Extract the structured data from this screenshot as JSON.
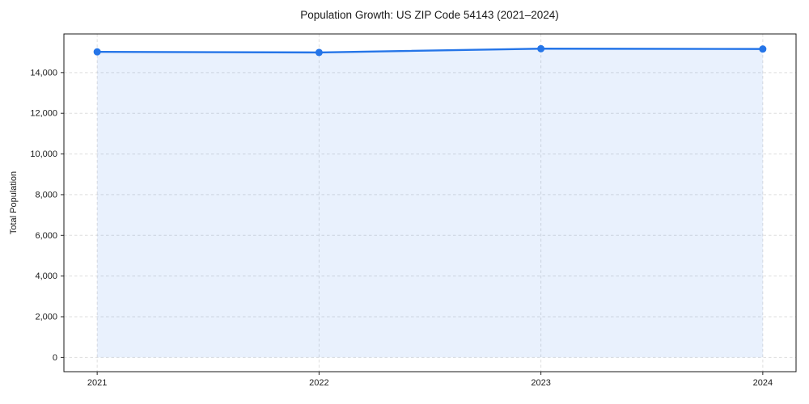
{
  "page": {
    "title": "Population Growth: US ZIP Code 54143 (2021–2024)"
  },
  "chart_data": {
    "type": "line",
    "title": "Population Growth: US ZIP Code 54143 (2021–2024)",
    "xlabel": "",
    "ylabel": "Total Population",
    "x": [
      2021,
      2022,
      2023,
      2024
    ],
    "x_tick_labels": [
      "2021",
      "2022",
      "2023",
      "2024"
    ],
    "series": [
      {
        "name": "Total Population",
        "values": [
          15020,
          14990,
          15175,
          15160
        ]
      }
    ],
    "y_ticks": [
      0,
      2000,
      4000,
      6000,
      8000,
      10000,
      12000,
      14000
    ],
    "y_tick_labels": [
      "0",
      "2,000",
      "4,000",
      "6,000",
      "8,000",
      "10,000",
      "12,000",
      "14,000"
    ],
    "xlim": [
      2020.85,
      2024.15
    ],
    "ylim": [
      -700,
      15900
    ],
    "grid": true,
    "legend": "none",
    "marker": "circle",
    "fill_to_zero": true,
    "line_color": "#2575e8",
    "fill_color": "rgba(37,117,232,0.10)",
    "grid_color": "#d8d8d8",
    "spine_color": "#1a1a1a"
  }
}
